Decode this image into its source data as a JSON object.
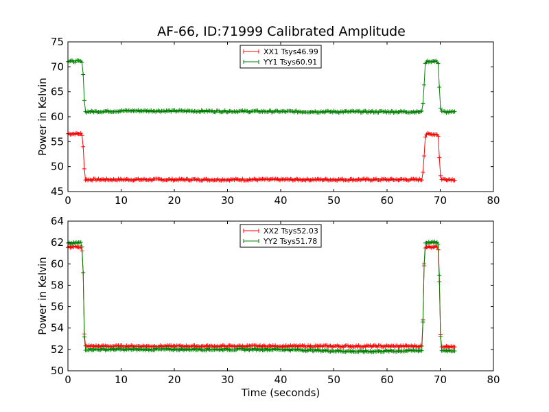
{
  "figure": {
    "title": "AF-66, ID:71999 Calibrated Amplitude"
  },
  "chart_data": [
    {
      "type": "line",
      "ylabel": "Power in Kelvin",
      "xlabel": "",
      "xlim": [
        0,
        80
      ],
      "ylim": [
        45,
        75
      ],
      "xticks": [
        "0",
        "10",
        "20",
        "30",
        "40",
        "50",
        "60",
        "70",
        "80"
      ],
      "yticks": [
        "45",
        "50",
        "55",
        "60",
        "65",
        "70",
        "75"
      ],
      "legend_position": "top-center",
      "grid": false,
      "x_range": [
        0,
        72.7
      ],
      "series": [
        {
          "name": "XX1 Tsys46.99",
          "color": "#ff0000",
          "marker": "+",
          "points": [
            [
              0,
              56.6
            ],
            [
              2.6,
              56.6
            ],
            [
              2.9,
              53.8
            ],
            [
              3.1,
              49.2
            ],
            [
              3.3,
              47.4
            ],
            [
              66.6,
              47.4
            ],
            [
              66.9,
              50.5
            ],
            [
              67.1,
              55.5
            ],
            [
              67.3,
              56.5
            ],
            [
              69.6,
              56.5
            ],
            [
              69.9,
              50.5
            ],
            [
              70.1,
              47.5
            ],
            [
              72.7,
              47.4
            ]
          ]
        },
        {
          "name": "YY1 Tsys60.91",
          "color": "#008000",
          "marker": "+",
          "points": [
            [
              0,
              71.1
            ],
            [
              2.6,
              71.1
            ],
            [
              2.9,
              68.3
            ],
            [
              3.1,
              62.9
            ],
            [
              3.3,
              61.0
            ],
            [
              12,
              61.2
            ],
            [
              30,
              61.1
            ],
            [
              50,
              61.0
            ],
            [
              66.6,
              61.0
            ],
            [
              66.9,
              64.5
            ],
            [
              67.1,
              70.0
            ],
            [
              67.3,
              71.1
            ],
            [
              69.6,
              71.1
            ],
            [
              69.9,
              64.5
            ],
            [
              70.1,
              61.0
            ],
            [
              72.7,
              60.9
            ]
          ]
        }
      ]
    },
    {
      "type": "line",
      "ylabel": "Power in Kelvin",
      "xlabel": "Time (seconds)",
      "xlim": [
        0,
        80
      ],
      "ylim": [
        50,
        64
      ],
      "xticks": [
        "0",
        "10",
        "20",
        "30",
        "40",
        "50",
        "60",
        "70",
        "80"
      ],
      "yticks": [
        "50",
        "52",
        "54",
        "56",
        "58",
        "60",
        "62",
        "64"
      ],
      "legend_position": "top-center",
      "grid": false,
      "x_range": [
        0,
        72.7
      ],
      "series": [
        {
          "name": "XX2 Tsys52.03",
          "color": "#ff0000",
          "marker": "+",
          "points": [
            [
              0,
              61.6
            ],
            [
              2.6,
              61.6
            ],
            [
              2.9,
              58.8
            ],
            [
              3.0,
              54.2
            ],
            [
              3.2,
              52.3
            ],
            [
              66.6,
              52.3
            ],
            [
              66.8,
              55.5
            ],
            [
              67.0,
              60.5
            ],
            [
              67.2,
              61.6
            ],
            [
              69.6,
              61.6
            ],
            [
              69.9,
              57.5
            ],
            [
              70.1,
              52.3
            ],
            [
              72.7,
              52.2
            ]
          ]
        },
        {
          "name": "YY2 Tsys51.78",
          "color": "#008000",
          "marker": "+",
          "points": [
            [
              0,
              61.9
            ],
            [
              2.6,
              62.0
            ],
            [
              2.9,
              58.8
            ],
            [
              3.0,
              54.0
            ],
            [
              3.2,
              52.0
            ],
            [
              20,
              52.0
            ],
            [
              40,
              52.0
            ],
            [
              55,
              51.8
            ],
            [
              66.6,
              51.9
            ],
            [
              66.8,
              55.4
            ],
            [
              67.0,
              60.8
            ],
            [
              67.2,
              62.0
            ],
            [
              69.6,
              62.0
            ],
            [
              69.9,
              58.0
            ],
            [
              70.1,
              51.9
            ],
            [
              72.7,
              51.9
            ]
          ]
        }
      ]
    }
  ]
}
